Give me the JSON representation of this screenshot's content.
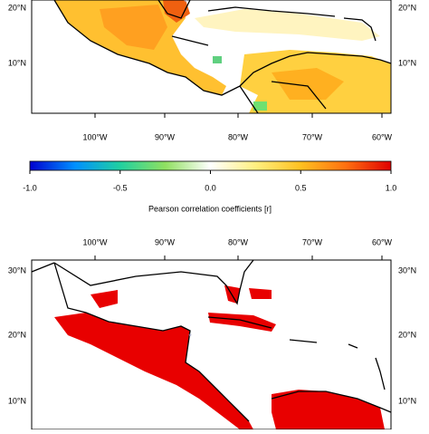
{
  "top_map": {
    "lat_labels": [
      "20°N",
      "10°N"
    ],
    "lon_labels": [
      "100°W",
      "90°W",
      "80°W",
      "70°W",
      "60°W"
    ]
  },
  "colorbar": {
    "lim": [
      -1,
      1
    ],
    "ticks": [
      {
        "value": -1,
        "label": "-1.0"
      },
      {
        "value": -0.5,
        "label": "-0.5"
      },
      {
        "value": 0,
        "label": "0.0"
      },
      {
        "value": 0.5,
        "label": "0.5"
      },
      {
        "value": 1,
        "label": "1.0"
      }
    ],
    "label": "Pearson correlation coefficients [r]",
    "colors": [
      "#0000d0",
      "#0090ff",
      "#20d0a0",
      "#90e060",
      "#ffffff",
      "#fff080",
      "#ffc020",
      "#ff7010",
      "#e00000"
    ]
  },
  "bottom_map": {
    "lat_labels": [
      "30°N",
      "20°N",
      "10°N"
    ],
    "lon_labels": [
      "100°W",
      "90°W",
      "80°W",
      "70°W",
      "60°W"
    ]
  }
}
